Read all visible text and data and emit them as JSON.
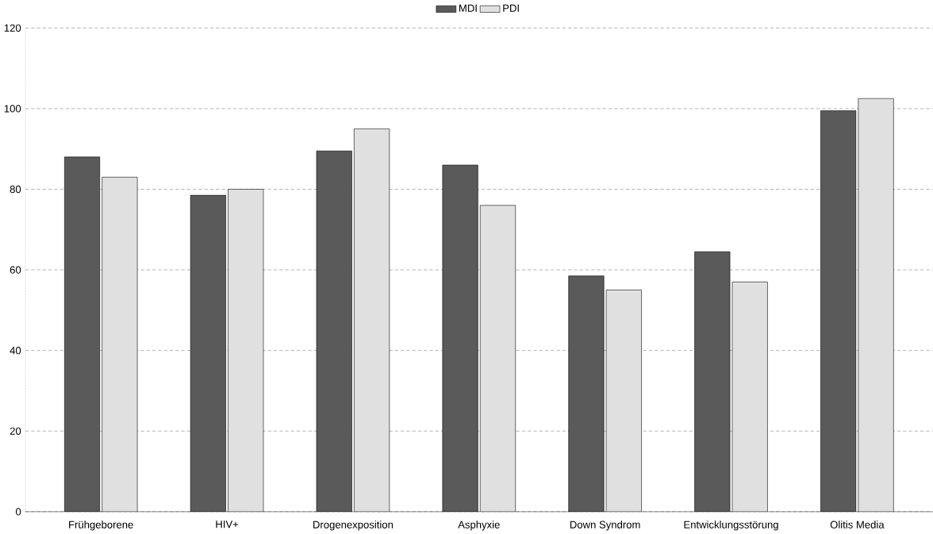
{
  "chart_data": {
    "type": "bar",
    "categories": [
      "Frühgeborene",
      "HIV+",
      "Drogenexposition",
      "Asphyxie",
      "Down Syndrom",
      "Entwicklungsstörung",
      "Olitis Media"
    ],
    "series": [
      {
        "name": "MDI",
        "color": "#5a5a5a",
        "values": [
          88,
          78.5,
          89.5,
          86,
          58.5,
          64.5,
          99.5
        ]
      },
      {
        "name": "PDI",
        "color": "#e0e0e0",
        "values": [
          83,
          80,
          95,
          76,
          55,
          57,
          102.5
        ]
      }
    ],
    "ylim": [
      0,
      120
    ],
    "yticks": [
      0,
      20,
      40,
      60,
      80,
      100,
      120
    ],
    "grid": "y",
    "legend": "top"
  }
}
